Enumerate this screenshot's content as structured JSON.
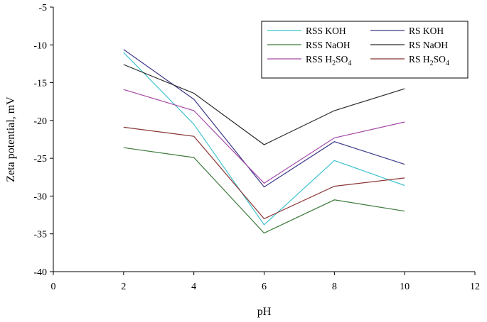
{
  "chart_data": {
    "type": "line",
    "title": "",
    "xlabel": "pH",
    "ylabel": "Zeta potential, mV",
    "xlim": [
      0,
      12
    ],
    "ylim": [
      -40,
      -5
    ],
    "x_ticks": [
      0,
      2,
      4,
      6,
      8,
      10,
      12
    ],
    "y_ticks": [
      -40,
      -35,
      -30,
      -25,
      -20,
      -15,
      -10,
      -5
    ],
    "x_tick_labels": [
      "0",
      "2",
      "4",
      "6",
      "8",
      "10",
      "12"
    ],
    "y_tick_labels": [
      "-40",
      "-35",
      "-30",
      "-25",
      "-20",
      "-15",
      "-10",
      "-5"
    ],
    "grid": false,
    "legend_position": "top-right",
    "x": [
      2,
      4,
      6,
      8,
      10
    ],
    "series": [
      {
        "name": "RSS KOH",
        "label_main": "RSS KOH",
        "label_sub": "",
        "label_tail": "",
        "color": "#3fc2cf",
        "values": [
          -11.0,
          -20.5,
          -33.8,
          -25.3,
          -28.6
        ]
      },
      {
        "name": "RS KOH",
        "label_main": "RS KOH",
        "label_sub": "",
        "label_tail": "",
        "color": "#3d3a8a",
        "values": [
          -10.6,
          -17.2,
          -28.8,
          -22.8,
          -25.8
        ]
      },
      {
        "name": "RSS NaOH",
        "label_main": "RSS NaOH",
        "label_sub": "",
        "label_tail": "",
        "color": "#3d7a3d",
        "values": [
          -23.6,
          -24.9,
          -34.9,
          -30.5,
          -32.0
        ]
      },
      {
        "name": "RS NaOH",
        "label_main": "RS NaOH",
        "label_sub": "",
        "label_tail": "",
        "color": "#2a2a2a",
        "values": [
          -12.6,
          -16.4,
          -23.2,
          -18.7,
          -15.8
        ]
      },
      {
        "name": "RSS H2SO4",
        "label_main": "RSS H",
        "label_sub": "2",
        "label_tail": "SO4",
        "label_tail_main": "SO",
        "label_tail_sub": "4",
        "color": "#a54aa5",
        "values": [
          -15.9,
          -18.7,
          -28.3,
          -22.3,
          -20.2
        ]
      },
      {
        "name": "RS H2SO4",
        "label_main": "RS H",
        "label_sub": "2",
        "label_tail": "SO4",
        "label_tail_main": "SO",
        "label_tail_sub": "4",
        "color": "#8a3535",
        "values": [
          -20.9,
          -22.1,
          -33.0,
          -28.7,
          -27.6
        ]
      }
    ]
  }
}
